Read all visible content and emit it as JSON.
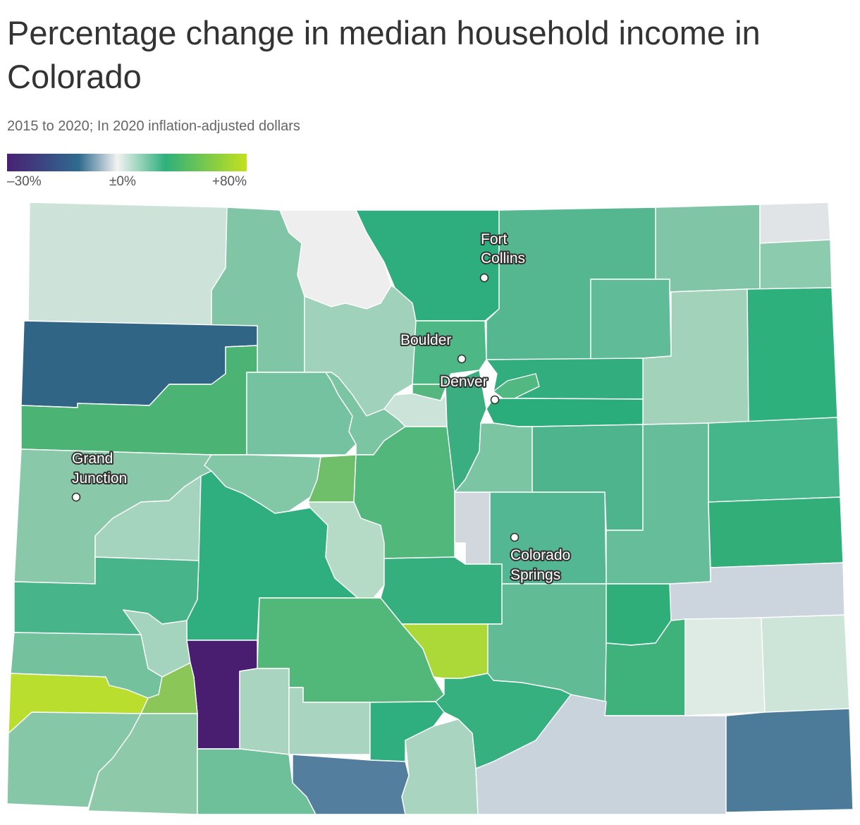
{
  "title": "Percentage change in median household income in Colorado",
  "subtitle": "2015 to 2020; In 2020 inflation-adjusted dollars",
  "legend": {
    "min_label": "–30%",
    "mid_label": "±0%",
    "max_label": "+80%",
    "colors": [
      "#482173",
      "#2f6b8e",
      "#f2f2f2",
      "#2eb07c",
      "#c3e11d"
    ]
  },
  "cities": [
    {
      "name_lines": [
        "Fort",
        "Collins"
      ]
    },
    {
      "name_lines": [
        "Boulder"
      ]
    },
    {
      "name_lines": [
        "Denver"
      ]
    },
    {
      "name_lines": [
        "Grand",
        "Junction"
      ]
    },
    {
      "name_lines": [
        "Colorado",
        "Springs"
      ]
    }
  ]
}
